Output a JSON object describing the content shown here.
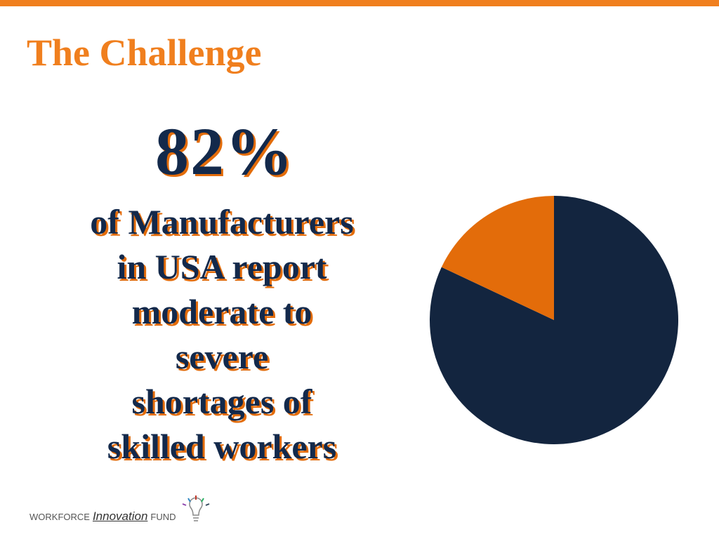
{
  "slide": {
    "title": "The Challenge",
    "stat": "82%",
    "lines": [
      "of Manufacturers",
      "in USA report",
      "moderate to",
      "severe",
      "shortages of",
      "skilled workers"
    ],
    "logo": {
      "left": "WORKFORCE",
      "middle": "Innovation",
      "right": "FUND"
    }
  },
  "chart_data": {
    "type": "pie",
    "categories": [
      null,
      null
    ],
    "values": [
      82,
      18
    ],
    "colors": [
      "#13253f",
      "#e36c0a"
    ]
  }
}
